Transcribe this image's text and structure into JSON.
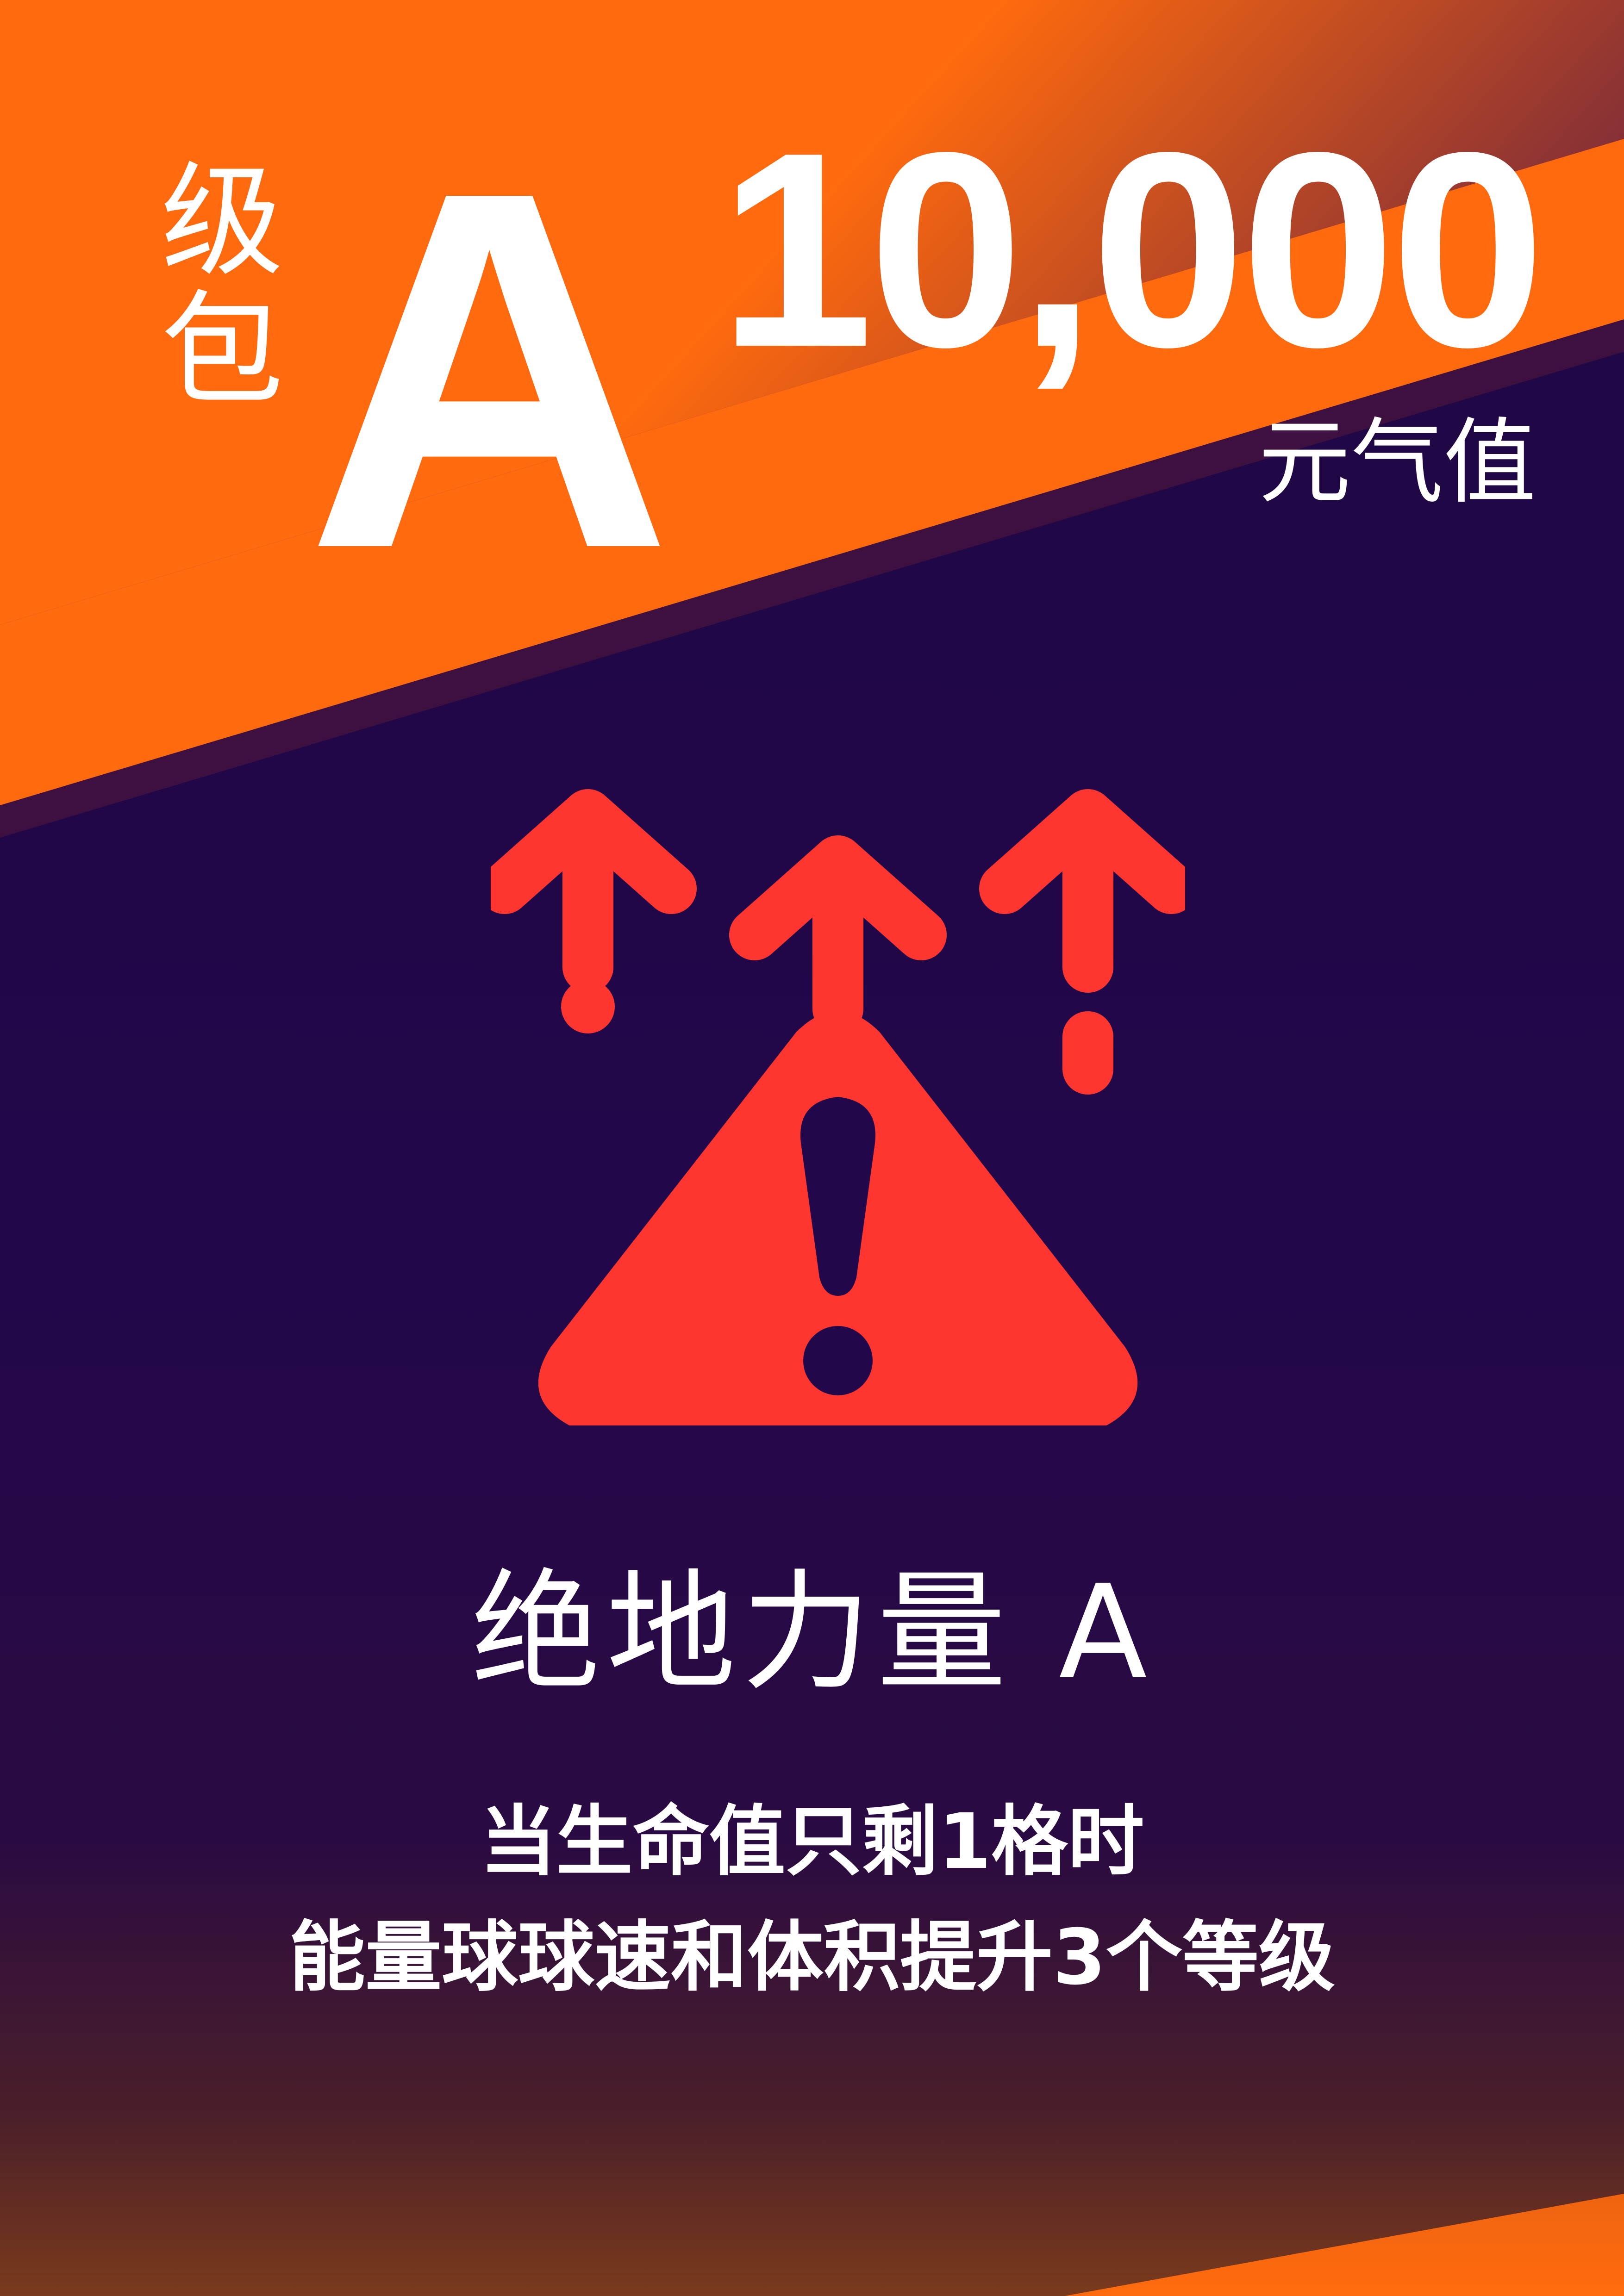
{
  "card": {
    "tier_vertical_chars": [
      "级",
      "包"
    ],
    "tier_letter": "A",
    "price": "10,000",
    "currency": "元气值",
    "title": "绝地力量 A",
    "description_lines": [
      "当生命值只剩1格时",
      "能量球球速和体积提升3个等级"
    ],
    "icon": "triangle-warning-arrows-up-icon"
  },
  "colors": {
    "background": "#1f0744",
    "band": "#ff6a0e",
    "band_shadow": "#8a2e2e",
    "icon": "#ff3630",
    "text": "#ffffff"
  }
}
